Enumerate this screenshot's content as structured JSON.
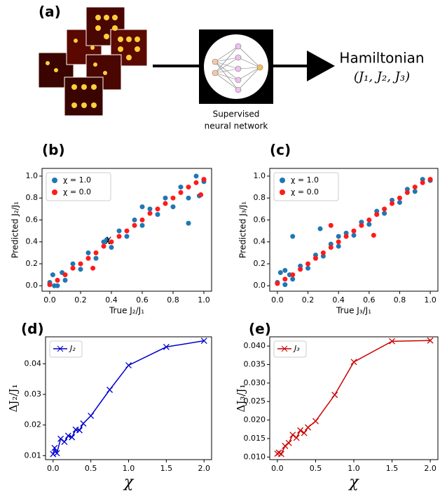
{
  "panel_a": {
    "label": "(a)",
    "network_caption": [
      "Supervised",
      "neural network"
    ],
    "output_title": "Hamiltonian",
    "output_params": "(J₁, J₂, J₃)"
  },
  "chart_data": [
    {
      "type": "scatter",
      "label": "(b)",
      "xlabel": "True J₂/J₁",
      "ylabel": "Predicted J₂/J₁",
      "annotation": "χ",
      "xlim": [
        -0.05,
        1.05
      ],
      "ylim": [
        -0.05,
        1.07
      ],
      "xticks": [
        {
          "value": 0,
          "label": "0.0"
        },
        0.2,
        0.4,
        0.6,
        0.8,
        {
          "value": 1,
          "label": "1.0"
        }
      ],
      "yticks": [
        {
          "value": 0,
          "label": "0.0"
        },
        0.2,
        0.4,
        0.6,
        0.8,
        {
          "value": 1,
          "label": "1.0"
        }
      ],
      "legend": "upper left",
      "series": [
        {
          "name": "χ = 1.0",
          "color": "#1f77b4",
          "x": [
            0,
            0.02,
            0.05,
            0.08,
            0.1,
            0.15,
            0.2,
            0.25,
            0.3,
            0.35,
            0.4,
            0.45,
            0.5,
            0.55,
            0.6,
            0.65,
            0.7,
            0.75,
            0.8,
            0.85,
            0.9,
            0.95,
            1.0,
            0.97,
            0.9,
            0.03,
            0.6,
            0.37
          ],
          "values": [
            0.03,
            0.1,
            0.0,
            0.12,
            0.05,
            0.2,
            0.15,
            0.3,
            0.25,
            0.4,
            0.35,
            0.5,
            0.45,
            0.6,
            0.55,
            0.7,
            0.65,
            0.8,
            0.72,
            0.9,
            0.8,
            1.0,
            0.95,
            0.82,
            0.57,
            0.0,
            0.72,
            0.42
          ]
        },
        {
          "name": "χ = 0.0",
          "color": "#ff1a1a",
          "x": [
            0,
            0.05,
            0.1,
            0.15,
            0.2,
            0.25,
            0.3,
            0.35,
            0.4,
            0.45,
            0.5,
            0.55,
            0.6,
            0.65,
            0.7,
            0.75,
            0.8,
            0.85,
            0.9,
            0.95,
            1.0,
            0.28,
            0.98
          ],
          "values": [
            0.01,
            0.05,
            0.1,
            0.16,
            0.2,
            0.25,
            0.3,
            0.36,
            0.4,
            0.45,
            0.5,
            0.55,
            0.6,
            0.66,
            0.7,
            0.75,
            0.8,
            0.85,
            0.9,
            0.94,
            0.97,
            0.16,
            0.83
          ]
        }
      ]
    },
    {
      "type": "scatter",
      "label": "(c)",
      "xlabel": "True J₃/J₁",
      "ylabel": "Predicted J₃/J₁",
      "xlim": [
        -0.05,
        1.05
      ],
      "ylim": [
        -0.05,
        1.07
      ],
      "xticks": [
        {
          "value": 0,
          "label": "0.0"
        },
        0.2,
        0.4,
        0.6,
        0.8,
        {
          "value": 1,
          "label": "1.0"
        }
      ],
      "yticks": [
        {
          "value": 0,
          "label": "0.0"
        },
        0.2,
        0.4,
        0.6,
        0.8,
        {
          "value": 1,
          "label": "1.0"
        }
      ],
      "legend": "upper left",
      "series": [
        {
          "name": "χ = 1.0",
          "color": "#1f77b4",
          "x": [
            0,
            0.02,
            0.05,
            0.08,
            0.1,
            0.15,
            0.2,
            0.25,
            0.3,
            0.35,
            0.4,
            0.45,
            0.5,
            0.55,
            0.6,
            0.65,
            0.7,
            0.75,
            0.8,
            0.85,
            0.9,
            0.95,
            1.0,
            0.1,
            0.28,
            0.05,
            0.4
          ],
          "values": [
            0.03,
            0.12,
            0.01,
            0.1,
            0.06,
            0.18,
            0.16,
            0.28,
            0.27,
            0.38,
            0.36,
            0.48,
            0.46,
            0.58,
            0.56,
            0.68,
            0.66,
            0.78,
            0.76,
            0.88,
            0.86,
            0.97,
            0.96,
            0.45,
            0.52,
            0.14,
            0.45
          ]
        },
        {
          "name": "χ = 0.0",
          "color": "#ff1a1a",
          "x": [
            0,
            0.05,
            0.1,
            0.15,
            0.2,
            0.25,
            0.3,
            0.35,
            0.4,
            0.45,
            0.5,
            0.55,
            0.6,
            0.65,
            0.7,
            0.75,
            0.8,
            0.85,
            0.9,
            0.95,
            1.0,
            0.35,
            0.63
          ],
          "values": [
            0.02,
            0.06,
            0.1,
            0.15,
            0.2,
            0.25,
            0.3,
            0.35,
            0.4,
            0.45,
            0.5,
            0.55,
            0.6,
            0.65,
            0.7,
            0.75,
            0.8,
            0.85,
            0.9,
            0.94,
            0.97,
            0.55,
            0.46
          ]
        }
      ]
    },
    {
      "type": "line",
      "label": "(d)",
      "xlabel": "χ",
      "ylabel": "ΔJ₂/J₁",
      "xlim": [
        -0.1,
        2.1
      ],
      "ylim": [
        0.0087,
        0.0488
      ],
      "xticks": [
        {
          "value": 0,
          "label": "0.0"
        },
        0.5,
        {
          "value": 1,
          "label": "1.0"
        },
        1.5,
        {
          "value": 2,
          "label": "2.0"
        }
      ],
      "yticks": [
        0.01,
        0.02,
        0.03,
        0.04
      ],
      "legend": "upper left",
      "series": [
        {
          "name": "J₂",
          "color": "#0000cc",
          "x": [
            0,
            0.02,
            0.05,
            0.1,
            0.15,
            0.2,
            0.25,
            0.3,
            0.35,
            0.4,
            0.5,
            0.75,
            1.0,
            1.5,
            2.0
          ],
          "values": [
            0.0105,
            0.0125,
            0.0108,
            0.0155,
            0.0145,
            0.0165,
            0.016,
            0.0185,
            0.0183,
            0.0205,
            0.023,
            0.0315,
            0.0395,
            0.0455,
            0.0475
          ]
        }
      ]
    },
    {
      "type": "line",
      "label": "(e)",
      "xlabel": "χ",
      "ylabel": "ΔJ₃/J₁",
      "xlim": [
        -0.1,
        2.1
      ],
      "ylim": [
        0.0093,
        0.0425
      ],
      "xticks": [
        {
          "value": 0,
          "label": "0.0"
        },
        0.5,
        {
          "value": 1,
          "label": "1.0"
        },
        1.5,
        {
          "value": 2,
          "label": "2.0"
        }
      ],
      "yticks": [
        {
          "value": 0.01,
          "label": "0.010"
        },
        0.015,
        {
          "value": 0.02,
          "label": "0.020"
        },
        0.025,
        {
          "value": 0.03,
          "label": "0.030"
        },
        0.035,
        {
          "value": 0.04,
          "label": "0.040"
        }
      ],
      "legend": "upper left",
      "series": [
        {
          "name": "J₃",
          "color": "#cc0000",
          "x": [
            0,
            0.02,
            0.05,
            0.1,
            0.15,
            0.2,
            0.25,
            0.3,
            0.35,
            0.4,
            0.5,
            0.75,
            1.0,
            1.5,
            2.0
          ],
          "values": [
            0.0109,
            0.0112,
            0.0108,
            0.013,
            0.0138,
            0.016,
            0.0152,
            0.0172,
            0.0165,
            0.018,
            0.0197,
            0.0268,
            0.0357,
            0.0413,
            0.0415
          ]
        }
      ]
    }
  ]
}
